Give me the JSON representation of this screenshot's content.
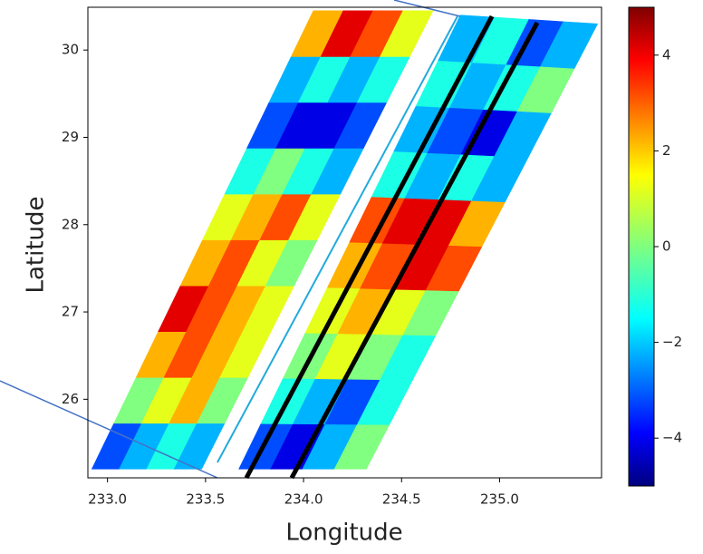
{
  "chart_data": {
    "type": "heatmap",
    "xlabel": "Longitude",
    "ylabel": "Latitude",
    "xlim": [
      232.9,
      235.52
    ],
    "ylim": [
      25.1,
      30.49
    ],
    "xticks": [
      {
        "value": 233,
        "label": "233.0"
      },
      {
        "value": 233.5,
        "label": "233.5"
      },
      {
        "value": 234,
        "label": "234.0"
      },
      {
        "value": 234.5,
        "label": "234.5"
      },
      {
        "value": 235,
        "label": "235.0"
      }
    ],
    "yticks": [
      26,
      27,
      28,
      29,
      30
    ],
    "colormap": "jet",
    "colorbar": {
      "clim": [
        -5,
        5
      ],
      "ticks": [
        {
          "value": -4,
          "label": "−4"
        },
        {
          "value": -2,
          "label": "−2"
        },
        0,
        2,
        4
      ]
    },
    "swaths": [
      {
        "corners": [
          [
            232.92,
            25.2
          ],
          [
            233.48,
            25.2
          ],
          [
            234.66,
            30.45
          ],
          [
            234.05,
            30.45
          ]
        ],
        "values": [
          [
            -3,
            -2,
            -1,
            -2
          ],
          [
            0,
            1,
            2,
            0
          ],
          [
            2,
            3,
            2,
            1
          ],
          [
            4,
            3,
            2,
            1
          ],
          [
            2,
            3,
            1,
            0
          ],
          [
            1,
            2,
            3,
            1
          ],
          [
            -1,
            0,
            -1,
            -2
          ],
          [
            -3,
            -4,
            -4,
            -3
          ],
          [
            -2,
            -1,
            -2,
            -1
          ],
          [
            2,
            4,
            3,
            1
          ]
        ]
      },
      {
        "corners": [
          [
            233.67,
            25.2
          ],
          [
            234.32,
            25.2
          ],
          [
            235.5,
            30.3
          ],
          [
            234.8,
            30.4
          ]
        ],
        "values": [
          [
            -3,
            -4,
            -2,
            0
          ],
          [
            -1,
            -2,
            -3,
            -1
          ],
          [
            0,
            1,
            0,
            -1
          ],
          [
            1,
            2,
            1,
            0
          ],
          [
            2,
            3,
            4,
            3
          ],
          [
            3,
            4,
            4,
            2
          ],
          [
            -1,
            -2,
            -1,
            -2
          ],
          [
            -2,
            -3,
            -4,
            -2
          ],
          [
            -1,
            -2,
            -1,
            0
          ],
          [
            -2,
            -1,
            -3,
            -2
          ]
        ]
      }
    ]
  }
}
